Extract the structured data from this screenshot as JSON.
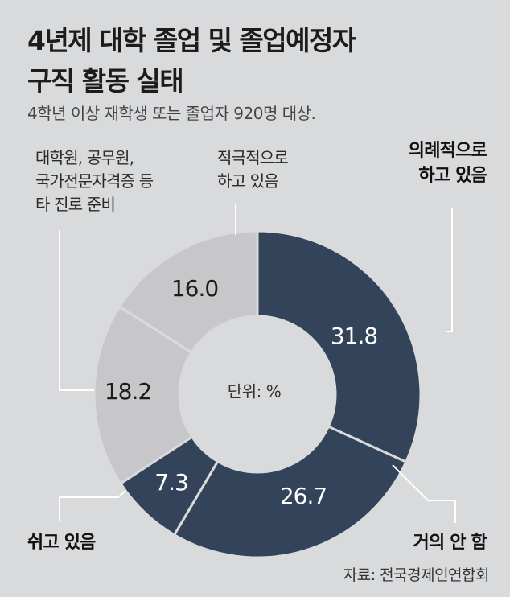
{
  "header": {
    "title_line1": "4년제 대학 졸업 및 졸업예정자",
    "title_line2": "구직 활동 실태",
    "subtitle": "4학년 이상 재학생 또는 졸업자 920명 대상."
  },
  "source": "자료: 전국경제인연합회",
  "colors": {
    "dark": "#33435a",
    "light": "#c7c7c9",
    "background": "#d9dadc"
  },
  "chart_data": {
    "type": "pie",
    "unit_label": "단위: %",
    "slices": [
      {
        "label_lines": [
          "의례적으로",
          "하고 있음"
        ],
        "value": 31.8,
        "value_label": "31.8",
        "tone": "dark"
      },
      {
        "label_lines": [
          "거의 안 함"
        ],
        "value": 26.7,
        "value_label": "26.7",
        "tone": "dark"
      },
      {
        "label_lines": [
          "쉬고 있음"
        ],
        "value": 7.3,
        "value_label": "7.3",
        "tone": "dark"
      },
      {
        "label_lines": [
          "대학원, 공무원,",
          "국가전문자격증 등",
          "타 진로 준비"
        ],
        "value": 18.2,
        "value_label": "18.2",
        "tone": "light"
      },
      {
        "label_lines": [
          "적극적으로",
          "하고 있음"
        ],
        "value": 16.0,
        "value_label": "16.0",
        "tone": "light"
      }
    ]
  }
}
